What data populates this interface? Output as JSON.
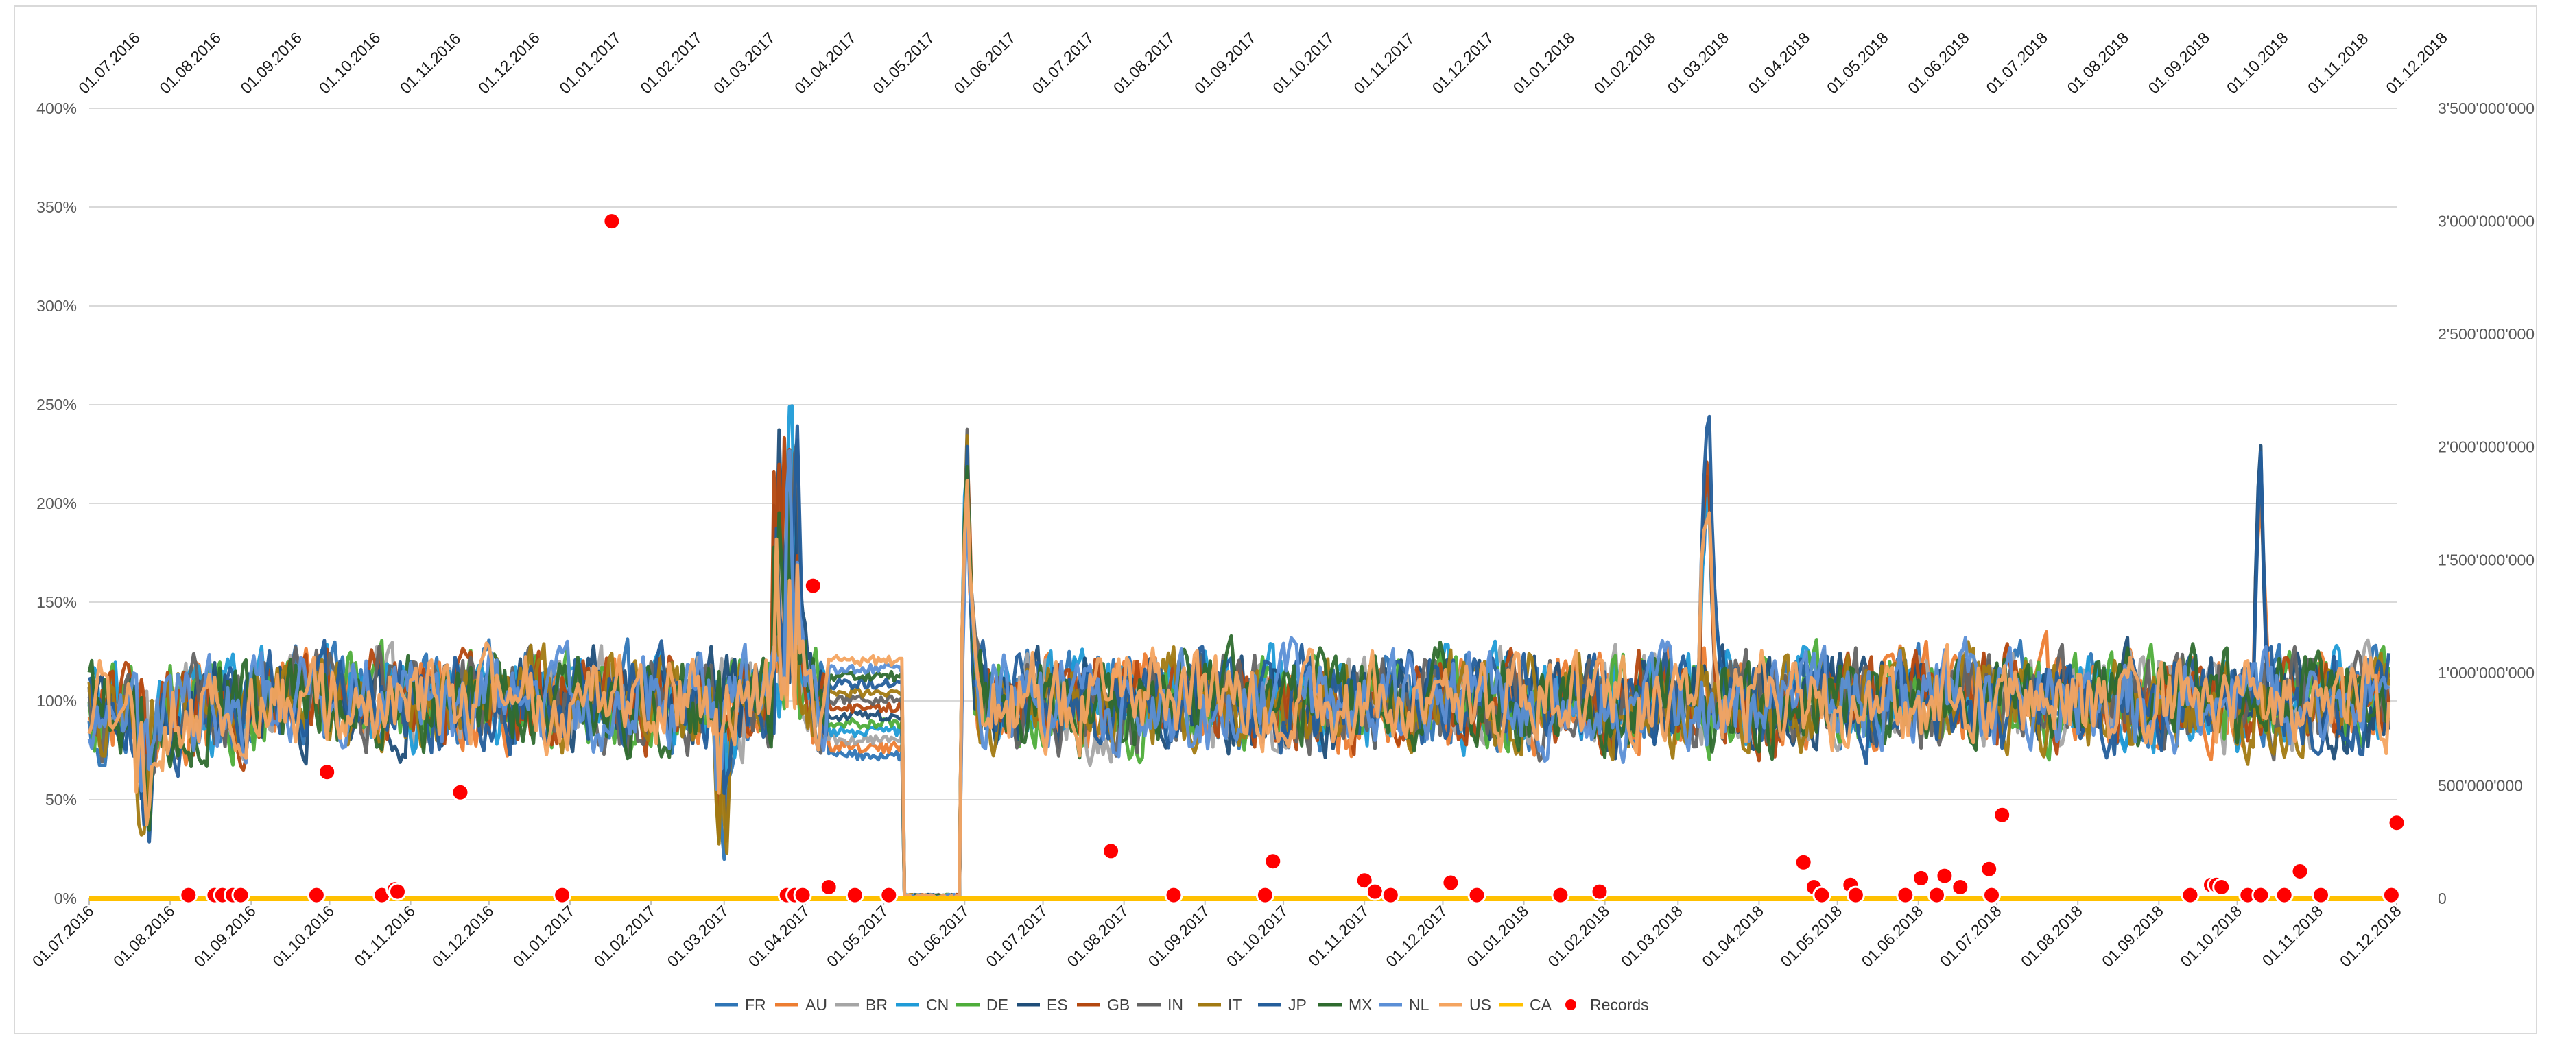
{
  "chart_data": {
    "type": "line",
    "title": "",
    "xlabel": "",
    "ylabel": "",
    "y2label": "",
    "legend_position": "bottom",
    "grid": true,
    "x_range": [
      "01.07.2016",
      "01.12.2018"
    ],
    "date_ticks": [
      "01.07.2016",
      "01.08.2016",
      "01.09.2016",
      "01.10.2016",
      "01.11.2016",
      "01.12.2016",
      "01.01.2017",
      "01.02.2017",
      "01.03.2017",
      "01.04.2017",
      "01.05.2017",
      "01.06.2017",
      "01.07.2017",
      "01.08.2017",
      "01.09.2017",
      "01.10.2017",
      "01.11.2017",
      "01.12.2017",
      "01.01.2018",
      "01.02.2018",
      "01.03.2018",
      "01.04.2018",
      "01.05.2018",
      "01.06.2018",
      "01.07.2018",
      "01.08.2018",
      "01.09.2018",
      "01.10.2018",
      "01.11.2018",
      "01.12.2018"
    ],
    "y_left": {
      "min": 0,
      "max": 4,
      "ticks": [
        "0%",
        "50%",
        "100%",
        "150%",
        "200%",
        "250%",
        "300%",
        "350%",
        "400%"
      ]
    },
    "y_right": {
      "min": 0,
      "max": 3500000000,
      "ticks": [
        "0",
        "500'000'000",
        "1'000'000'000",
        "1'500'000'000",
        "2'000'000'000",
        "2'500'000'000",
        "3'000'000'000",
        "3'500'000'000"
      ]
    },
    "series": [
      {
        "name": "FR",
        "color": "#2e75b6",
        "axis": "left"
      },
      {
        "name": "AU",
        "color": "#ed7d31",
        "axis": "left"
      },
      {
        "name": "BR",
        "color": "#a5a5a5",
        "axis": "left"
      },
      {
        "name": "CN",
        "color": "#1f9bd7",
        "axis": "left"
      },
      {
        "name": "DE",
        "color": "#4ead3a",
        "axis": "left"
      },
      {
        "name": "ES",
        "color": "#1f4e79",
        "axis": "left"
      },
      {
        "name": "GB",
        "color": "#b4480f",
        "axis": "left"
      },
      {
        "name": "IN",
        "color": "#636363",
        "axis": "left"
      },
      {
        "name": "IT",
        "color": "#a27a12",
        "axis": "left"
      },
      {
        "name": "JP",
        "color": "#245e9b",
        "axis": "left"
      },
      {
        "name": "MX",
        "color": "#2f6b2f",
        "axis": "left"
      },
      {
        "name": "NL",
        "color": "#5b8fd6",
        "axis": "left"
      },
      {
        "name": "US",
        "color": "#f4a460",
        "axis": "left"
      },
      {
        "name": "CA",
        "color": "#ffc000",
        "axis": "left",
        "points": [
          [
            "01.07.2016",
            0
          ],
          [
            "01.12.2018",
            0
          ]
        ]
      },
      {
        "name": "Records",
        "type": "scatter",
        "axis": "right",
        "color": "#ff0000",
        "points": [
          [
            "08.08.2016",
            15000000
          ],
          [
            "18.08.2016",
            15000000
          ],
          [
            "21.08.2016",
            15000000
          ],
          [
            "25.08.2016",
            15000000
          ],
          [
            "28.08.2016",
            15000000
          ],
          [
            "26.09.2016",
            15000000
          ],
          [
            "30.09.2016",
            560000000
          ],
          [
            "21.10.2016",
            15000000
          ],
          [
            "26.10.2016",
            40000000
          ],
          [
            "27.10.2016",
            30000000
          ],
          [
            "20.11.2016",
            470000000
          ],
          [
            "29.12.2016",
            15000000
          ],
          [
            "17.01.2017",
            3000000000
          ],
          [
            "25.03.2017",
            15000000
          ],
          [
            "28.03.2017",
            15000000
          ],
          [
            "31.03.2017",
            15000000
          ],
          [
            "04.04.2017",
            1385000000
          ],
          [
            "10.04.2017",
            50000000
          ],
          [
            "20.04.2017",
            15000000
          ],
          [
            "03.05.2017",
            15000000
          ],
          [
            "27.07.2017",
            210000000
          ],
          [
            "20.08.2017",
            15000000
          ],
          [
            "24.09.2017",
            15000000
          ],
          [
            "27.09.2017",
            165000000
          ],
          [
            "01.11.2017",
            80000000
          ],
          [
            "05.11.2017",
            30000000
          ],
          [
            "11.11.2017",
            15000000
          ],
          [
            "04.12.2017",
            70000000
          ],
          [
            "14.12.2017",
            15000000
          ],
          [
            "15.01.2018",
            15000000
          ],
          [
            "30.01.2018",
            30000000
          ],
          [
            "18.04.2018",
            160000000
          ],
          [
            "22.04.2018",
            50000000
          ],
          [
            "25.04.2018",
            15000000
          ],
          [
            "06.05.2018",
            60000000
          ],
          [
            "08.05.2018",
            15000000
          ],
          [
            "27.05.2018",
            15000000
          ],
          [
            "02.06.2018",
            90000000
          ],
          [
            "08.06.2018",
            15000000
          ],
          [
            "11.06.2018",
            100000000
          ],
          [
            "17.06.2018",
            50000000
          ],
          [
            "28.06.2018",
            130000000
          ],
          [
            "29.06.2018",
            15000000
          ],
          [
            "03.07.2018",
            370000000
          ],
          [
            "13.09.2018",
            15000000
          ],
          [
            "21.09.2018",
            60000000
          ],
          [
            "23.09.2018",
            60000000
          ],
          [
            "25.09.2018",
            50000000
          ],
          [
            "05.10.2018",
            15000000
          ],
          [
            "10.10.2018",
            15000000
          ],
          [
            "19.10.2018",
            15000000
          ],
          [
            "25.10.2018",
            120000000
          ],
          [
            "02.11.2018",
            15000000
          ],
          [
            "29.11.2018",
            15000000
          ],
          [
            "01.12.2018",
            335000000
          ]
        ]
      }
    ]
  }
}
